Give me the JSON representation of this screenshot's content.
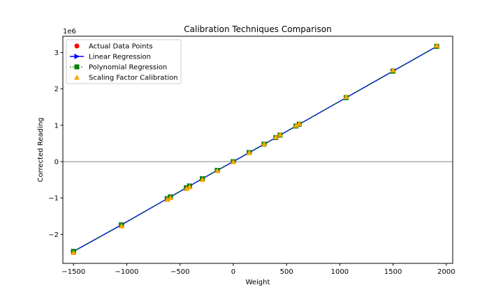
{
  "chart_data": {
    "type": "scatter",
    "title": "Calibration Techniques Comparison",
    "xlabel": "Weight",
    "ylabel": "Corrected Reading",
    "y_offset_label": "1e6",
    "xlim": [
      -1600,
      2060
    ],
    "ylim": [
      -2.8,
      3.45
    ],
    "x_ticks": [
      -1500,
      -1000,
      -500,
      0,
      500,
      1000,
      1500,
      2000
    ],
    "x_tick_labels": [
      "−1500",
      "−1000",
      "−500",
      "0",
      "500",
      "1000",
      "1500",
      "2000"
    ],
    "y_ticks": [
      -2,
      -1,
      0,
      1,
      2,
      3
    ],
    "y_tick_labels": [
      "−2",
      "−1",
      "0",
      "1",
      "2",
      "3"
    ],
    "grid": false,
    "zero_line": true,
    "legend_position": "top-left",
    "x": [
      -1500,
      -1050,
      -620,
      -590,
      -440,
      -410,
      -290,
      -150,
      0,
      150,
      290,
      400,
      440,
      590,
      620,
      1060,
      1500,
      1910
    ],
    "series": [
      {
        "name": "Actual Data Points",
        "marker": "circle",
        "color": "#ff0000",
        "values": [
          -2.47,
          -1.74,
          -1.02,
          -0.97,
          -0.72,
          -0.67,
          -0.47,
          -0.24,
          0.0,
          0.25,
          0.48,
          0.66,
          0.73,
          0.98,
          1.03,
          1.76,
          2.49,
          3.17
        ]
      },
      {
        "name": "Linear Regression",
        "marker": "triangle-right",
        "line": "solid",
        "color": "#0000ff",
        "values": [
          -2.47,
          -1.74,
          -1.02,
          -0.97,
          -0.72,
          -0.67,
          -0.47,
          -0.24,
          0.0,
          0.25,
          0.48,
          0.66,
          0.73,
          0.98,
          1.03,
          1.76,
          2.49,
          3.17
        ]
      },
      {
        "name": "Polynomial Regression",
        "marker": "square",
        "line": "dotted",
        "color": "#008000",
        "values": [
          -2.47,
          -1.74,
          -1.02,
          -0.97,
          -0.72,
          -0.67,
          -0.47,
          -0.24,
          0.0,
          0.25,
          0.48,
          0.66,
          0.73,
          0.98,
          1.03,
          1.76,
          2.49,
          3.17
        ]
      },
      {
        "name": "Scaling Factor Calibration",
        "marker": "triangle-up",
        "color": "#ffa500",
        "values": [
          -2.5,
          -1.77,
          -1.04,
          -0.99,
          -0.74,
          -0.69,
          -0.49,
          -0.25,
          0.0,
          0.25,
          0.49,
          0.68,
          0.75,
          1.0,
          1.05,
          1.79,
          2.52,
          3.2
        ]
      }
    ]
  }
}
